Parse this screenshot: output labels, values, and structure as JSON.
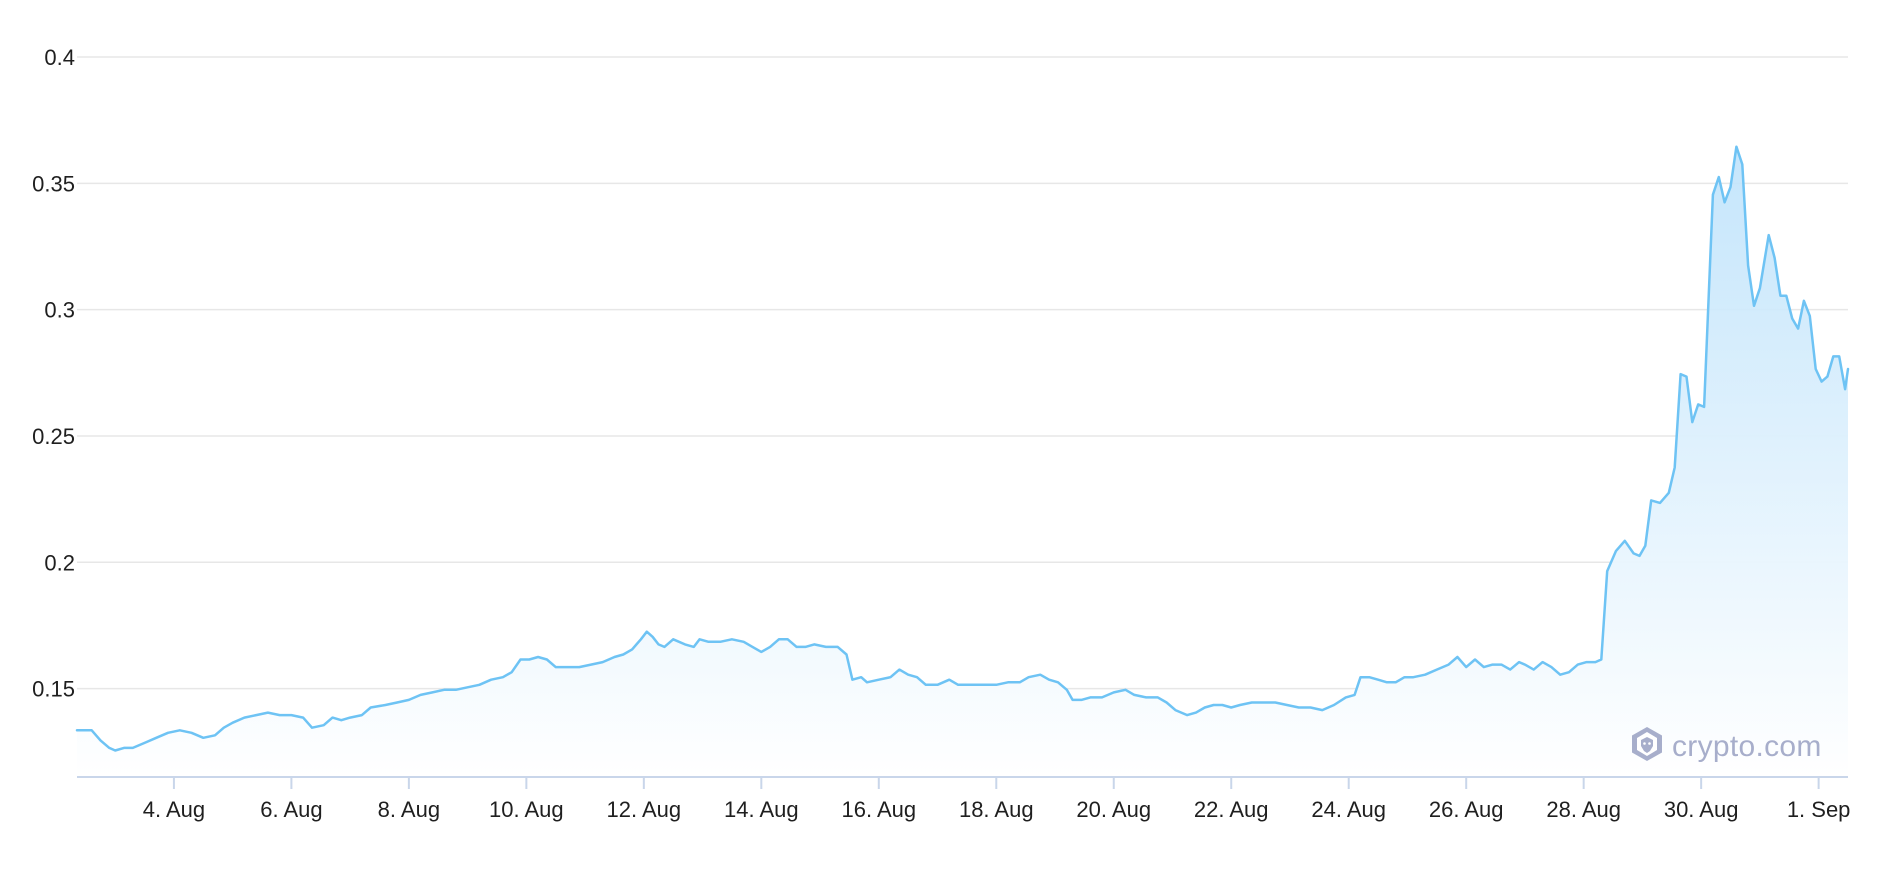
{
  "colors": {
    "line": "#6ec3f4",
    "area_top": "#bfe3fb",
    "area_bottom": "#ffffff",
    "grid": "#e7e7e7",
    "axis": "#c9d6ea",
    "watermark": "#a7aecb"
  },
  "watermark": {
    "text": "crypto.com",
    "icon": "crypto-com-lion-shield-icon"
  },
  "chart_data": {
    "type": "area",
    "title": "",
    "xlabel": "",
    "ylabel": "",
    "grid": true,
    "legend": "none",
    "x_range": [
      2.35,
      32.5
    ],
    "ylim": [
      0.115,
      0.4
    ],
    "y_ticks": [
      {
        "value": 0.15,
        "label": "0.15"
      },
      {
        "value": 0.2,
        "label": "0.2"
      },
      {
        "value": 0.25,
        "label": "0.25"
      },
      {
        "value": 0.3,
        "label": "0.3"
      },
      {
        "value": 0.35,
        "label": "0.35"
      },
      {
        "value": 0.4,
        "label": "0.4"
      }
    ],
    "x_ticks": [
      {
        "value": 4,
        "label": "4. Aug"
      },
      {
        "value": 6,
        "label": "6. Aug"
      },
      {
        "value": 8,
        "label": "8. Aug"
      },
      {
        "value": 10,
        "label": "10. Aug"
      },
      {
        "value": 12,
        "label": "12. Aug"
      },
      {
        "value": 14,
        "label": "14. Aug"
      },
      {
        "value": 16,
        "label": "16. Aug"
      },
      {
        "value": 18,
        "label": "18. Aug"
      },
      {
        "value": 20,
        "label": "20. Aug"
      },
      {
        "value": 22,
        "label": "22. Aug"
      },
      {
        "value": 24,
        "label": "24. Aug"
      },
      {
        "value": 26,
        "label": "26. Aug"
      },
      {
        "value": 28,
        "label": "28. Aug"
      },
      {
        "value": 30,
        "label": "30. Aug"
      },
      {
        "value": 32,
        "label": "1. Sep"
      }
    ],
    "series": [
      {
        "points": [
          [
            2.35,
            0.1335
          ],
          [
            2.6,
            0.1335
          ],
          [
            2.75,
            0.1295
          ],
          [
            2.9,
            0.1265
          ],
          [
            3.0,
            0.1255
          ],
          [
            3.15,
            0.1265
          ],
          [
            3.3,
            0.1265
          ],
          [
            3.5,
            0.1285
          ],
          [
            3.7,
            0.1305
          ],
          [
            3.9,
            0.1325
          ],
          [
            4.1,
            0.1335
          ],
          [
            4.3,
            0.1325
          ],
          [
            4.5,
            0.1305
          ],
          [
            4.7,
            0.1315
          ],
          [
            4.85,
            0.1345
          ],
          [
            5.0,
            0.1365
          ],
          [
            5.2,
            0.1385
          ],
          [
            5.4,
            0.1395
          ],
          [
            5.6,
            0.1405
          ],
          [
            5.8,
            0.1395
          ],
          [
            6.0,
            0.1395
          ],
          [
            6.2,
            0.1385
          ],
          [
            6.35,
            0.1345
          ],
          [
            6.55,
            0.1355
          ],
          [
            6.7,
            0.1385
          ],
          [
            6.85,
            0.1375
          ],
          [
            7.0,
            0.1385
          ],
          [
            7.2,
            0.1395
          ],
          [
            7.35,
            0.1425
          ],
          [
            7.6,
            0.1435
          ],
          [
            7.8,
            0.1445
          ],
          [
            8.0,
            0.1455
          ],
          [
            8.2,
            0.1475
          ],
          [
            8.4,
            0.1485
          ],
          [
            8.6,
            0.1495
          ],
          [
            8.8,
            0.1495
          ],
          [
            9.0,
            0.1505
          ],
          [
            9.2,
            0.1515
          ],
          [
            9.4,
            0.1535
          ],
          [
            9.6,
            0.1545
          ],
          [
            9.75,
            0.1565
          ],
          [
            9.9,
            0.1615
          ],
          [
            10.05,
            0.1615
          ],
          [
            10.2,
            0.1625
          ],
          [
            10.35,
            0.1615
          ],
          [
            10.5,
            0.1585
          ],
          [
            10.7,
            0.1585
          ],
          [
            10.9,
            0.1585
          ],
          [
            11.1,
            0.1595
          ],
          [
            11.3,
            0.1605
          ],
          [
            11.5,
            0.1625
          ],
          [
            11.65,
            0.1635
          ],
          [
            11.8,
            0.1655
          ],
          [
            11.95,
            0.1695
          ],
          [
            12.05,
            0.1725
          ],
          [
            12.15,
            0.1705
          ],
          [
            12.25,
            0.1675
          ],
          [
            12.35,
            0.1665
          ],
          [
            12.5,
            0.1695
          ],
          [
            12.7,
            0.1675
          ],
          [
            12.85,
            0.1665
          ],
          [
            12.95,
            0.1695
          ],
          [
            13.1,
            0.1685
          ],
          [
            13.3,
            0.1685
          ],
          [
            13.5,
            0.1695
          ],
          [
            13.7,
            0.1685
          ],
          [
            13.85,
            0.1665
          ],
          [
            14.0,
            0.1645
          ],
          [
            14.15,
            0.1665
          ],
          [
            14.3,
            0.1695
          ],
          [
            14.45,
            0.1695
          ],
          [
            14.6,
            0.1665
          ],
          [
            14.75,
            0.1665
          ],
          [
            14.9,
            0.1675
          ],
          [
            15.1,
            0.1665
          ],
          [
            15.3,
            0.1665
          ],
          [
            15.45,
            0.1635
          ],
          [
            15.55,
            0.1535
          ],
          [
            15.7,
            0.1545
          ],
          [
            15.8,
            0.1525
          ],
          [
            16.0,
            0.1535
          ],
          [
            16.2,
            0.1545
          ],
          [
            16.35,
            0.1575
          ],
          [
            16.5,
            0.1555
          ],
          [
            16.65,
            0.1545
          ],
          [
            16.8,
            0.1515
          ],
          [
            17.0,
            0.1515
          ],
          [
            17.2,
            0.1535
          ],
          [
            17.35,
            0.1515
          ],
          [
            17.6,
            0.1515
          ],
          [
            17.8,
            0.1515
          ],
          [
            18.0,
            0.1515
          ],
          [
            18.2,
            0.1525
          ],
          [
            18.4,
            0.1525
          ],
          [
            18.55,
            0.1545
          ],
          [
            18.75,
            0.1555
          ],
          [
            18.9,
            0.1535
          ],
          [
            19.05,
            0.1525
          ],
          [
            19.2,
            0.1495
          ],
          [
            19.3,
            0.1455
          ],
          [
            19.45,
            0.1455
          ],
          [
            19.6,
            0.1465
          ],
          [
            19.8,
            0.1465
          ],
          [
            20.0,
            0.1485
          ],
          [
            20.2,
            0.1495
          ],
          [
            20.35,
            0.1475
          ],
          [
            20.55,
            0.1465
          ],
          [
            20.75,
            0.1465
          ],
          [
            20.9,
            0.1445
          ],
          [
            21.05,
            0.1415
          ],
          [
            21.25,
            0.1395
          ],
          [
            21.4,
            0.1405
          ],
          [
            21.55,
            0.1425
          ],
          [
            21.7,
            0.1435
          ],
          [
            21.85,
            0.1435
          ],
          [
            22.0,
            0.1425
          ],
          [
            22.15,
            0.1435
          ],
          [
            22.35,
            0.1445
          ],
          [
            22.55,
            0.1445
          ],
          [
            22.75,
            0.1445
          ],
          [
            22.95,
            0.1435
          ],
          [
            23.15,
            0.1425
          ],
          [
            23.35,
            0.1425
          ],
          [
            23.55,
            0.1415
          ],
          [
            23.75,
            0.1435
          ],
          [
            23.95,
            0.1465
          ],
          [
            24.1,
            0.1475
          ],
          [
            24.2,
            0.1545
          ],
          [
            24.35,
            0.1545
          ],
          [
            24.5,
            0.1535
          ],
          [
            24.65,
            0.1525
          ],
          [
            24.8,
            0.1525
          ],
          [
            24.95,
            0.1545
          ],
          [
            25.1,
            0.1545
          ],
          [
            25.3,
            0.1555
          ],
          [
            25.5,
            0.1575
          ],
          [
            25.7,
            0.1595
          ],
          [
            25.85,
            0.1625
          ],
          [
            26.0,
            0.1585
          ],
          [
            26.15,
            0.1615
          ],
          [
            26.3,
            0.1585
          ],
          [
            26.45,
            0.1595
          ],
          [
            26.6,
            0.1595
          ],
          [
            26.75,
            0.1575
          ],
          [
            26.9,
            0.1605
          ],
          [
            27.0,
            0.1595
          ],
          [
            27.15,
            0.1575
          ],
          [
            27.3,
            0.1605
          ],
          [
            27.45,
            0.1585
          ],
          [
            27.6,
            0.1555
          ],
          [
            27.75,
            0.1565
          ],
          [
            27.9,
            0.1595
          ],
          [
            28.05,
            0.1605
          ],
          [
            28.2,
            0.1605
          ],
          [
            28.3,
            0.1615
          ],
          [
            28.4,
            0.1965
          ],
          [
            28.55,
            0.2045
          ],
          [
            28.7,
            0.2085
          ],
          [
            28.85,
            0.2035
          ],
          [
            28.95,
            0.2025
          ],
          [
            29.05,
            0.2065
          ],
          [
            29.15,
            0.2245
          ],
          [
            29.3,
            0.2235
          ],
          [
            29.45,
            0.2275
          ],
          [
            29.55,
            0.2375
          ],
          [
            29.65,
            0.2745
          ],
          [
            29.75,
            0.2735
          ],
          [
            29.85,
            0.2555
          ],
          [
            29.95,
            0.2625
          ],
          [
            30.05,
            0.2615
          ],
          [
            30.2,
            0.3455
          ],
          [
            30.3,
            0.3525
          ],
          [
            30.4,
            0.3425
          ],
          [
            30.5,
            0.3485
          ],
          [
            30.6,
            0.3645
          ],
          [
            30.7,
            0.3575
          ],
          [
            30.8,
            0.3175
          ],
          [
            30.9,
            0.3015
          ],
          [
            31.0,
            0.3085
          ],
          [
            31.15,
            0.3295
          ],
          [
            31.25,
            0.3205
          ],
          [
            31.35,
            0.3055
          ],
          [
            31.45,
            0.3055
          ],
          [
            31.55,
            0.2965
          ],
          [
            31.65,
            0.2925
          ],
          [
            31.75,
            0.3035
          ],
          [
            31.85,
            0.2975
          ],
          [
            31.95,
            0.2765
          ],
          [
            32.05,
            0.2715
          ],
          [
            32.15,
            0.2735
          ],
          [
            32.25,
            0.2815
          ],
          [
            32.35,
            0.2815
          ],
          [
            32.45,
            0.2685
          ],
          [
            32.5,
            0.2765
          ]
        ]
      }
    ]
  }
}
